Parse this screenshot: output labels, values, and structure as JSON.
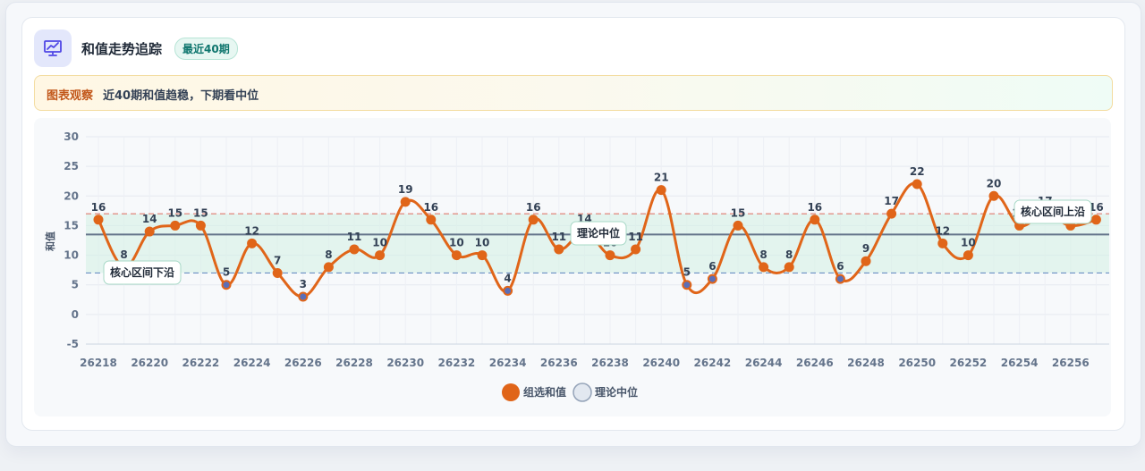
{
  "header": {
    "title": "和值走势追踪",
    "badge": "最近40期",
    "icon": "chart-line-icon"
  },
  "insight": {
    "tag": "图表观察",
    "text": "近40期和值趋稳，下期看中位"
  },
  "colors": {
    "series": "#e06519",
    "median": "#64748b",
    "band": "#d3f0e3",
    "upper": "#e07a6e",
    "lower": "#6a8fc4"
  },
  "chart_data": {
    "type": "line",
    "ylabel": "和值",
    "ylim": [
      -5,
      30
    ],
    "yticks": [
      "-5",
      "0",
      "5",
      "10",
      "15",
      "20",
      "25",
      "30"
    ],
    "x": [
      26218,
      26219,
      26220,
      26221,
      26222,
      26223,
      26224,
      26225,
      26226,
      26227,
      26228,
      26229,
      26230,
      26231,
      26232,
      26233,
      26234,
      26235,
      26236,
      26237,
      26238,
      26239,
      26240,
      26241,
      26242,
      26243,
      26244,
      26245,
      26246,
      26247,
      26248,
      26249,
      26250,
      26251,
      26252,
      26253,
      26254,
      26255,
      26256,
      26257
    ],
    "xticks": [
      "26218",
      "26220",
      "26222",
      "26224",
      "26226",
      "26228",
      "26230",
      "26232",
      "26234",
      "26236",
      "26238",
      "26240",
      "26242",
      "26244",
      "26246",
      "26248",
      "26250",
      "26252",
      "26254",
      "26256"
    ],
    "series": [
      {
        "name": "组选和值",
        "values": [
          16,
          8,
          14,
          15,
          15,
          5,
          12,
          7,
          3,
          8,
          11,
          10,
          19,
          16,
          10,
          10,
          4,
          16,
          11,
          14,
          10,
          11,
          21,
          5,
          6,
          15,
          8,
          8,
          16,
          6,
          9,
          17,
          22,
          12,
          10,
          20,
          15,
          17,
          15,
          16
        ]
      }
    ],
    "median": 13.5,
    "band": [
      7,
      17
    ],
    "annotations": {
      "lower": "核心区间下沿",
      "median": "理论中位",
      "upper": "核心区间上沿"
    },
    "legend": [
      {
        "name": "组选和值"
      },
      {
        "name": "理论中位"
      }
    ]
  }
}
